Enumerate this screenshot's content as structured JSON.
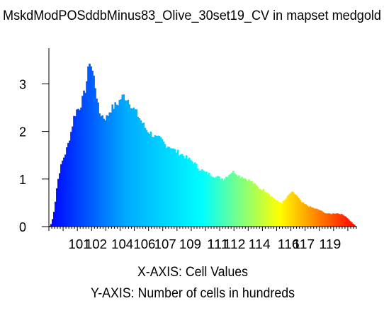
{
  "chart_data": {
    "type": "bar",
    "title": "MskdModPOSddbMinus83_Olive_30set19_CV in mapset medgold",
    "xlabel": "X-AXIS: Cell Values",
    "ylabel": "Y-AXIS: Number of cells in hundreds",
    "x_tick_labels": [
      "101",
      "102",
      "104",
      "106",
      "107",
      "109",
      "111",
      "112",
      "114",
      "116",
      "117",
      "119"
    ],
    "x_tick_values": [
      100.8,
      102.0,
      103.9,
      105.5,
      107.0,
      108.8,
      110.8,
      112.0,
      113.8,
      115.9,
      117.0,
      118.9
    ],
    "y_ticks": [
      0,
      1,
      2,
      3
    ],
    "ylim": [
      0,
      3.75
    ],
    "xlim": [
      98.6,
      120.8
    ],
    "bins": 216,
    "gradient": [
      "#0000ff",
      "#00aaff",
      "#00ffff",
      "#ffff00",
      "#ff0000"
    ],
    "profile": [
      [
        98.6,
        0
      ],
      [
        98.75,
        0.05
      ],
      [
        98.9,
        0.2
      ],
      [
        99.05,
        0.5
      ],
      [
        99.2,
        0.9
      ],
      [
        99.4,
        1.2
      ],
      [
        99.6,
        1.4
      ],
      [
        99.8,
        1.55
      ],
      [
        100.0,
        1.75
      ],
      [
        100.2,
        2.0
      ],
      [
        100.4,
        2.3
      ],
      [
        100.6,
        2.45
      ],
      [
        100.8,
        2.5
      ],
      [
        101.0,
        2.65
      ],
      [
        101.2,
        2.85
      ],
      [
        101.4,
        3.2
      ],
      [
        101.55,
        3.55
      ],
      [
        101.65,
        3.35
      ],
      [
        101.8,
        3.2
      ],
      [
        102.0,
        2.85
      ],
      [
        102.2,
        2.4
      ],
      [
        102.4,
        2.35
      ],
      [
        102.6,
        2.28
      ],
      [
        102.8,
        2.3
      ],
      [
        103.0,
        2.45
      ],
      [
        103.2,
        2.5
      ],
      [
        103.4,
        2.55
      ],
      [
        103.6,
        2.6
      ],
      [
        103.8,
        2.7
      ],
      [
        104.0,
        2.75
      ],
      [
        104.2,
        2.7
      ],
      [
        104.4,
        2.65
      ],
      [
        104.6,
        2.5
      ],
      [
        104.8,
        2.45
      ],
      [
        105.0,
        2.35
      ],
      [
        105.2,
        2.25
      ],
      [
        105.4,
        2.15
      ],
      [
        105.6,
        2.05
      ],
      [
        105.8,
        2.0
      ],
      [
        106.0,
        1.95
      ],
      [
        106.2,
        1.9
      ],
      [
        106.4,
        1.85
      ],
      [
        106.6,
        1.85
      ],
      [
        106.8,
        1.8
      ],
      [
        107.0,
        1.72
      ],
      [
        107.2,
        1.7
      ],
      [
        107.4,
        1.68
      ],
      [
        107.6,
        1.62
      ],
      [
        107.8,
        1.58
      ],
      [
        108.0,
        1.55
      ],
      [
        108.2,
        1.52
      ],
      [
        108.4,
        1.48
      ],
      [
        108.6,
        1.43
      ],
      [
        108.8,
        1.4
      ],
      [
        109.0,
        1.37
      ],
      [
        109.2,
        1.3
      ],
      [
        109.4,
        1.22
      ],
      [
        109.6,
        1.2
      ],
      [
        109.8,
        1.15
      ],
      [
        110.0,
        1.12
      ],
      [
        110.2,
        1.1
      ],
      [
        110.4,
        1.08
      ],
      [
        110.6,
        1.05
      ],
      [
        110.8,
        1.04
      ],
      [
        111.0,
        1.02
      ],
      [
        111.2,
        1.0
      ],
      [
        111.4,
        1.05
      ],
      [
        111.6,
        1.1
      ],
      [
        111.8,
        1.15
      ],
      [
        112.0,
        1.15
      ],
      [
        112.2,
        1.1
      ],
      [
        112.4,
        1.05
      ],
      [
        112.6,
        1.05
      ],
      [
        112.8,
        1.0
      ],
      [
        113.0,
        0.98
      ],
      [
        113.2,
        0.95
      ],
      [
        113.4,
        0.9
      ],
      [
        113.6,
        0.85
      ],
      [
        113.8,
        0.8
      ],
      [
        114.0,
        0.78
      ],
      [
        114.2,
        0.75
      ],
      [
        114.4,
        0.72
      ],
      [
        114.6,
        0.65
      ],
      [
        114.8,
        0.6
      ],
      [
        115.0,
        0.55
      ],
      [
        115.2,
        0.52
      ],
      [
        115.4,
        0.5
      ],
      [
        115.6,
        0.55
      ],
      [
        115.8,
        0.62
      ],
      [
        116.0,
        0.7
      ],
      [
        116.2,
        0.72
      ],
      [
        116.4,
        0.68
      ],
      [
        116.6,
        0.6
      ],
      [
        116.8,
        0.52
      ],
      [
        117.0,
        0.48
      ],
      [
        117.2,
        0.45
      ],
      [
        117.4,
        0.42
      ],
      [
        117.6,
        0.4
      ],
      [
        117.8,
        0.38
      ],
      [
        118.0,
        0.36
      ],
      [
        118.2,
        0.34
      ],
      [
        118.4,
        0.3
      ],
      [
        118.6,
        0.28
      ],
      [
        118.8,
        0.27
      ],
      [
        119.0,
        0.27
      ],
      [
        119.2,
        0.28
      ],
      [
        119.4,
        0.28
      ],
      [
        119.6,
        0.27
      ],
      [
        119.8,
        0.25
      ],
      [
        120.0,
        0.22
      ],
      [
        120.2,
        0.16
      ],
      [
        120.4,
        0.1
      ],
      [
        120.6,
        0.05
      ],
      [
        120.8,
        0.0
      ]
    ]
  }
}
